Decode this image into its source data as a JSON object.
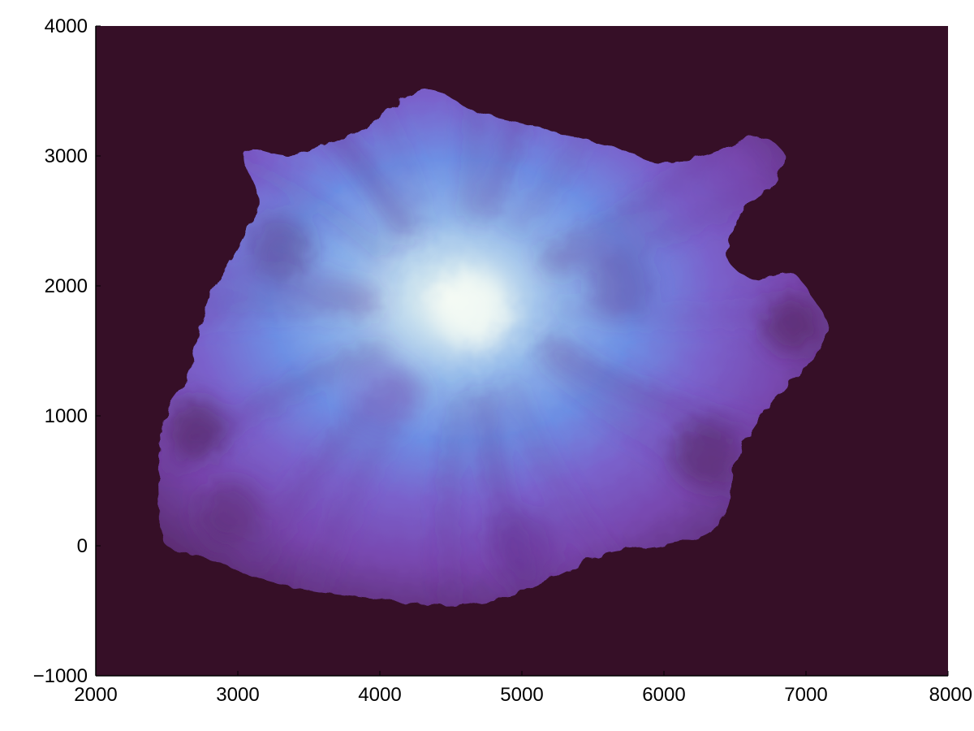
{
  "chart_data": {
    "type": "heatmap",
    "title": "",
    "xlabel": "",
    "ylabel": "",
    "xlim": [
      2000,
      8000
    ],
    "ylim": [
      -1000,
      4000
    ],
    "x_ticks": [
      2000,
      3000,
      4000,
      5000,
      6000,
      7000,
      8000
    ],
    "y_ticks": [
      -1000,
      0,
      1000,
      2000,
      3000,
      4000
    ],
    "x_tick_labels": [
      "2000",
      "3000",
      "4000",
      "5000",
      "6000",
      "7000",
      "8000"
    ],
    "y_tick_labels": [
      "−1000",
      "0",
      "1000",
      "2000",
      "3000",
      "4000"
    ],
    "grid": false,
    "legend": "none",
    "colormap": [
      "#360f27",
      "#5a2a6e",
      "#7a52bd",
      "#6d8fe4",
      "#a3c8ec",
      "#f2f8f2"
    ],
    "background_color": "#360f27",
    "peak": {
      "x": 4600,
      "y": 1850
    },
    "island_outline": [
      [
        4300,
        3520
      ],
      [
        4150,
        3420
      ],
      [
        3850,
        3200
      ],
      [
        3600,
        3080
      ],
      [
        3350,
        3000
      ],
      [
        3100,
        3050
      ],
      [
        3050,
        2950
      ],
      [
        3150,
        2650
      ],
      [
        3050,
        2400
      ],
      [
        2950,
        2200
      ],
      [
        2800,
        1900
      ],
      [
        2700,
        1500
      ],
      [
        2650,
        1300
      ],
      [
        2500,
        1050
      ],
      [
        2450,
        700
      ],
      [
        2450,
        300
      ],
      [
        2500,
        0
      ],
      [
        2800,
        -100
      ],
      [
        3150,
        -250
      ],
      [
        3550,
        -350
      ],
      [
        3950,
        -400
      ],
      [
        4300,
        -450
      ],
      [
        4600,
        -450
      ],
      [
        4950,
        -380
      ],
      [
        5300,
        -200
      ],
      [
        5600,
        -50
      ],
      [
        5950,
        0
      ],
      [
        6300,
        100
      ],
      [
        6450,
        300
      ],
      [
        6500,
        650
      ],
      [
        6650,
        950
      ],
      [
        6850,
        1200
      ],
      [
        7050,
        1450
      ],
      [
        7150,
        1700
      ],
      [
        7050,
        1900
      ],
      [
        6900,
        2100
      ],
      [
        6650,
        2050
      ],
      [
        6450,
        2200
      ],
      [
        6500,
        2450
      ],
      [
        6600,
        2650
      ],
      [
        6750,
        2750
      ],
      [
        6850,
        3000
      ],
      [
        6650,
        3150
      ],
      [
        6300,
        3000
      ],
      [
        5950,
        2950
      ],
      [
        5700,
        3050
      ],
      [
        5350,
        3150
      ],
      [
        5000,
        3250
      ],
      [
        4650,
        3350
      ],
      [
        4450,
        3480
      ]
    ]
  }
}
